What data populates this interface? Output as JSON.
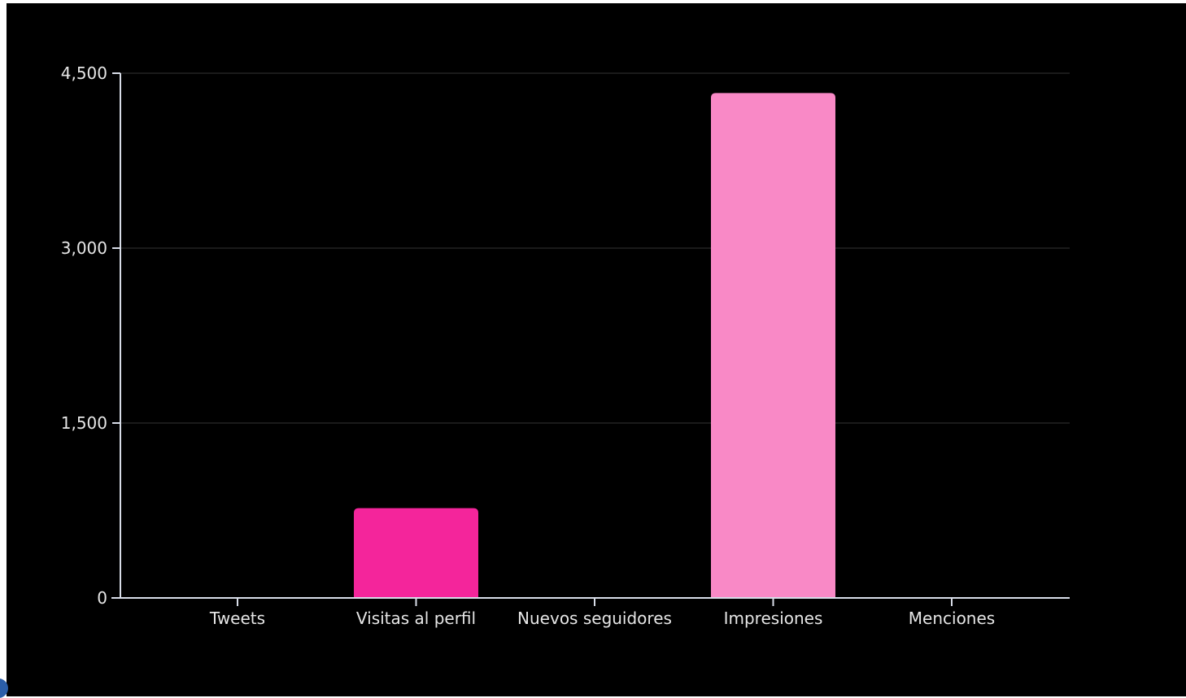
{
  "chart_data": {
    "type": "bar",
    "categories": [
      "Tweets",
      "Visitas al perfil",
      "Nuevos seguidores",
      "Impresiones",
      "Menciones"
    ],
    "values": [
      0,
      770,
      0,
      4330,
      0
    ],
    "colors": [
      "#f4259b",
      "#f4259b",
      "#f4259b",
      "#f989c6",
      "#f4259b"
    ],
    "ylim": [
      0,
      4500
    ],
    "yticks": [
      0,
      1500,
      3000,
      4500
    ],
    "ytick_labels": [
      "0",
      "1,500",
      "3,000",
      "4,500"
    ],
    "grid": true,
    "title": "",
    "xlabel": "",
    "ylabel": ""
  }
}
